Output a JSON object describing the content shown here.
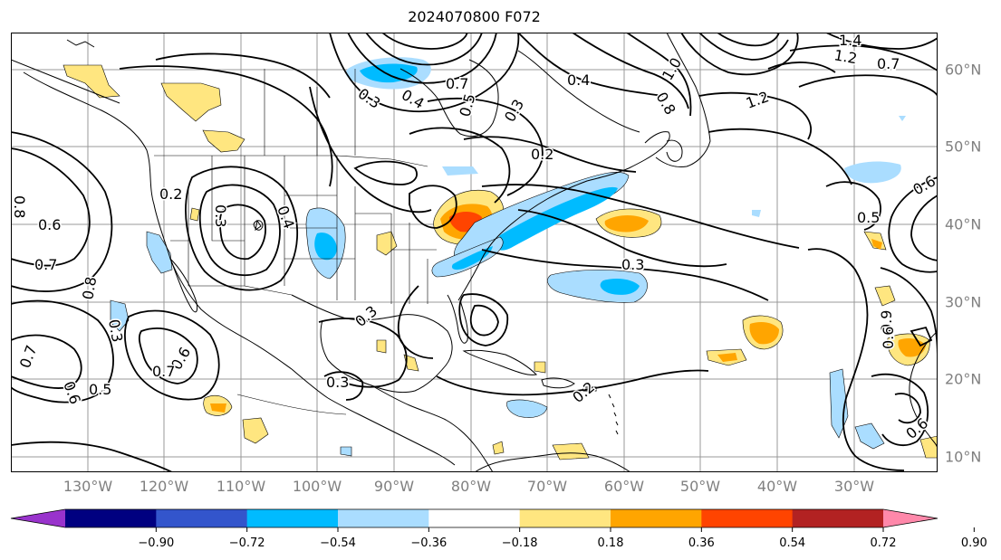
{
  "title": "2024070800 F072",
  "lon_labels": [
    "130°W",
    "120°W",
    "110°W",
    "100°W",
    "90°W",
    "80°W",
    "70°W",
    "60°W",
    "50°W",
    "40°W",
    "30°W"
  ],
  "lat_labels": [
    "60°N",
    "50°N",
    "40°N",
    "30°N",
    "20°N",
    "10°N"
  ],
  "colorbar": {
    "ticks": [
      "−0.90",
      "−0.72",
      "−0.54",
      "−0.36",
      "−0.18",
      "0.18",
      "0.36",
      "0.54",
      "0.72",
      "0.90"
    ],
    "colors": [
      "#9933cc",
      "#000080",
      "#3355cc",
      "#00bbff",
      "#aaddff",
      "#ffffff",
      "#ffe680",
      "#ffa500",
      "#ff4400",
      "#b22222",
      "#ff88aa"
    ]
  },
  "contour_labels": [
    {
      "text": "0.3"
    },
    {
      "text": "0.4"
    },
    {
      "text": "0.5"
    },
    {
      "text": "0.7"
    },
    {
      "text": "0.3"
    },
    {
      "text": "0.4"
    },
    {
      "text": "0.2"
    },
    {
      "text": "0.8"
    },
    {
      "text": "1.0"
    },
    {
      "text": "1.2"
    },
    {
      "text": "1.4"
    },
    {
      "text": "0.7"
    },
    {
      "text": "1.2"
    },
    {
      "text": "0.6"
    },
    {
      "text": "0.5"
    },
    {
      "text": "0.2"
    },
    {
      "text": "0.3"
    },
    {
      "text": "0.4"
    },
    {
      "text": "0.6"
    },
    {
      "text": "0.7"
    },
    {
      "text": "0.8"
    },
    {
      "text": "0.3"
    },
    {
      "text": "0.6"
    },
    {
      "text": "0.7"
    },
    {
      "text": "0.6"
    },
    {
      "text": "0.5"
    },
    {
      "text": "0.3"
    },
    {
      "text": "0.3"
    },
    {
      "text": "0.3"
    },
    {
      "text": "0.2"
    },
    {
      "text": "0.6"
    },
    {
      "text": "0.9"
    },
    {
      "text": "0.6"
    },
    {
      "text": "0.8"
    },
    {
      "text": "0.7"
    }
  ]
}
